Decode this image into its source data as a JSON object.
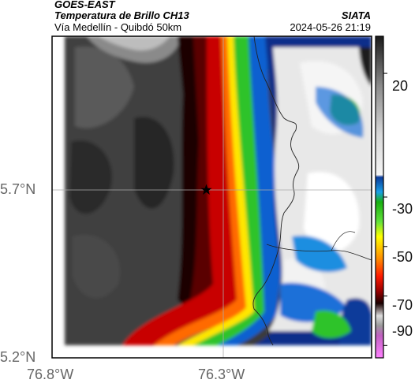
{
  "header": {
    "satellite": "GOES-EAST",
    "product": "Temperatura de Brillo CH13",
    "region": "Vía Medellín - Quibdó 50km",
    "organization": "SIATA",
    "timestamp": "2024-05-26 21:19"
  },
  "map": {
    "lat_labels": [
      "5.7°N",
      "5.2°N"
    ],
    "lon_labels": [
      "76.8°W",
      "76.3°W"
    ],
    "marker_icon": "star-icon"
  },
  "colorbar": {
    "tick_labels": [
      "20",
      "-30",
      "-50",
      "-70",
      "-90"
    ],
    "ticks": [
      20,
      -30,
      -50,
      -70,
      -90
    ],
    "range": [
      -95,
      35
    ],
    "stops": [
      {
        "v": 35,
        "c": "#1a1a1a"
      },
      {
        "v": 15,
        "c": "#8a8a8a"
      },
      {
        "v": -5,
        "c": "#d9d9d9"
      },
      {
        "v": -21,
        "c": "#f4f4f4"
      },
      {
        "v": -22,
        "c": "#0a3a9a"
      },
      {
        "v": -28,
        "c": "#1aa0e6"
      },
      {
        "v": -32,
        "c": "#18b010"
      },
      {
        "v": -40,
        "c": "#62e23a"
      },
      {
        "v": -46,
        "c": "#ffff00"
      },
      {
        "v": -55,
        "c": "#ff8c00"
      },
      {
        "v": -62,
        "c": "#ff1a00"
      },
      {
        "v": -68,
        "c": "#9a0000"
      },
      {
        "v": -73,
        "c": "#1a0000"
      },
      {
        "v": -78,
        "c": "#dddddd"
      },
      {
        "v": -82,
        "c": "#9a9a9a"
      },
      {
        "v": -86,
        "c": "#c060c0"
      },
      {
        "v": -95,
        "c": "#ff80ff"
      }
    ]
  }
}
